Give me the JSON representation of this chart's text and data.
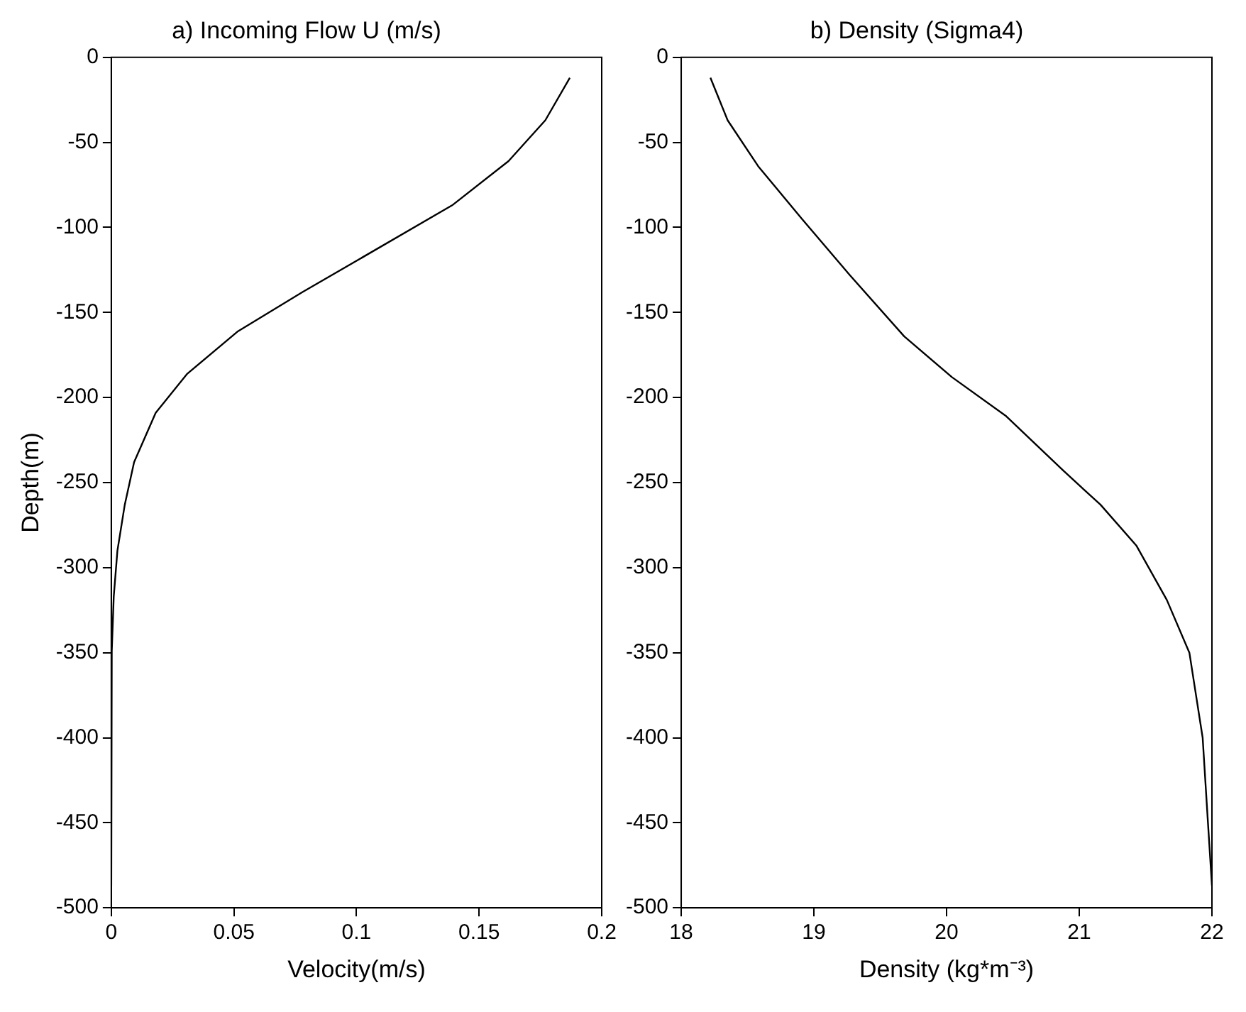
{
  "chart_data": [
    {
      "type": "line",
      "title": "a) Incoming Flow U (m/s)",
      "xlabel": "Velocity(m/s)",
      "ylabel": "Depth(m)",
      "series": [
        {
          "color": "#000000",
          "x": [
            0.187,
            0.177,
            0.162,
            0.139,
            0.078,
            0.0517,
            0.031,
            0.0181,
            0.0093,
            0.0055,
            0.0025,
            0.001,
            0.0002,
            0
          ],
          "values": [
            -12,
            -37,
            -61,
            -87,
            -138,
            -161,
            -186,
            -209,
            -238,
            -263,
            -290,
            -317,
            -349,
            -487
          ]
        }
      ],
      "xlim": [
        0,
        0.2
      ],
      "xticks": [
        0,
        0.05,
        0.1,
        0.15,
        0.2
      ],
      "ylim": [
        -500,
        0
      ],
      "yticks": [
        -500,
        -450,
        -400,
        -350,
        -300,
        -250,
        -200,
        -150,
        -100,
        -50,
        0
      ]
    },
    {
      "type": "line",
      "title": "b) Density (Sigma4)",
      "xlabel": "Density (kg*m⁻³)",
      "series": [
        {
          "color": "#000000",
          "x": [
            18.22,
            18.35,
            18.58,
            18.91,
            19.27,
            19.68,
            20.04,
            20.45,
            20.88,
            21.16,
            21.43,
            21.66,
            21.83,
            21.93,
            21.97,
            22.0
          ],
          "values": [
            -12,
            -37,
            -64,
            -95,
            -128,
            -164,
            -188,
            -211,
            -243,
            -263,
            -287,
            -319,
            -350,
            -400,
            -450,
            -487
          ]
        }
      ],
      "xlim": [
        18,
        22
      ],
      "xticks": [
        18,
        19,
        20,
        21,
        22
      ],
      "ylim": [
        -500,
        0
      ],
      "yticks": [
        -500,
        -450,
        -400,
        -350,
        -300,
        -250,
        -200,
        -150,
        -100,
        -50,
        0
      ]
    }
  ]
}
